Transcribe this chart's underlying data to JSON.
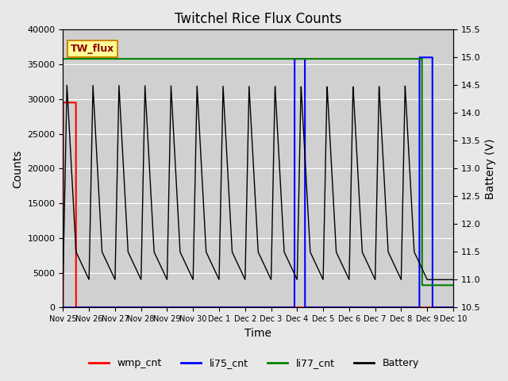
{
  "title": "Twitchel Rice Flux Counts",
  "xlabel": "Time",
  "ylabel_left": "Counts",
  "ylabel_right": "Battery (V)",
  "xlim_start": "2013-11-25",
  "xlim_end": "2013-12-10",
  "ylim_left": [
    0,
    40000
  ],
  "ylim_right": [
    10.5,
    15.5
  ],
  "yticks_left": [
    0,
    5000,
    10000,
    15000,
    20000,
    25000,
    30000,
    35000,
    40000
  ],
  "yticks_right": [
    10.5,
    11.0,
    11.5,
    12.0,
    12.5,
    13.0,
    13.5,
    14.0,
    14.5,
    15.0,
    15.5
  ],
  "bg_color": "#e8e8e8",
  "plot_bg_color": "#d8d8d8",
  "legend_label": "TW_flux",
  "legend_bg": "#ffff99",
  "legend_border": "#cc8800",
  "wmp_color": "red",
  "li75_color": "blue",
  "li77_color": "green",
  "battery_color": "black",
  "xtick_labels": [
    "Nov 25",
    "Nov 26",
    "Nov 27",
    "Nov 28",
    "Nov 29",
    "Nov 30",
    "Dec 1",
    "Dec 2",
    "Dec 3",
    "Dec 4",
    "Dec 5",
    "Dec 6",
    "Dec 7",
    "Dec 8",
    "Dec 9",
    "Dec 10"
  ]
}
